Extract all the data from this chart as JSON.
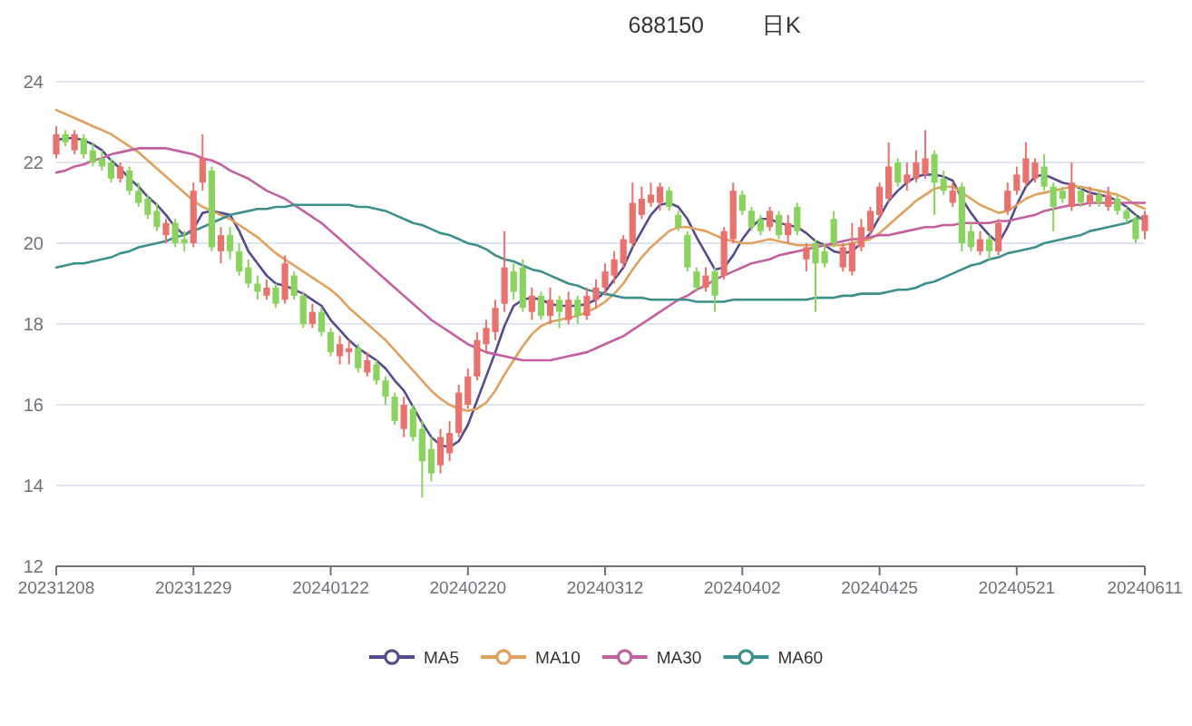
{
  "chart_data": {
    "type": "candlestick",
    "title": "688150",
    "subtitle": "日K",
    "categories": [
      "20231208",
      null,
      null,
      null,
      null,
      null,
      null,
      null,
      null,
      null,
      null,
      null,
      null,
      null,
      null,
      "20231229",
      null,
      null,
      null,
      null,
      null,
      null,
      null,
      null,
      null,
      null,
      null,
      null,
      null,
      null,
      "20240122",
      null,
      null,
      null,
      null,
      null,
      null,
      null,
      null,
      null,
      null,
      null,
      null,
      null,
      null,
      "20240220",
      null,
      null,
      null,
      null,
      null,
      null,
      null,
      null,
      null,
      null,
      null,
      null,
      null,
      null,
      "20240312",
      null,
      null,
      null,
      null,
      null,
      null,
      null,
      null,
      null,
      null,
      null,
      null,
      null,
      null,
      "20240402",
      null,
      null,
      null,
      null,
      null,
      null,
      null,
      null,
      null,
      null,
      null,
      null,
      null,
      null,
      "20240425",
      null,
      null,
      null,
      null,
      null,
      null,
      null,
      null,
      null,
      null,
      null,
      null,
      null,
      null,
      "20240521",
      null,
      null,
      null,
      null,
      null,
      null,
      null,
      null,
      null,
      null,
      null,
      null,
      null,
      "20240611"
    ],
    "ohlc": [
      [
        22.2,
        22.9,
        22.1,
        22.7
      ],
      [
        22.7,
        22.8,
        22.4,
        22.5
      ],
      [
        22.3,
        22.8,
        22.2,
        22.7
      ],
      [
        22.6,
        22.7,
        22.1,
        22.2
      ],
      [
        22.3,
        22.5,
        21.9,
        22.0
      ],
      [
        22.1,
        22.3,
        21.8,
        21.9
      ],
      [
        22.0,
        22.1,
        21.5,
        21.6
      ],
      [
        21.6,
        22.0,
        21.5,
        21.9
      ],
      [
        21.8,
        21.9,
        21.2,
        21.3
      ],
      [
        21.3,
        21.5,
        20.9,
        21.0
      ],
      [
        21.1,
        21.2,
        20.6,
        20.7
      ],
      [
        20.8,
        21.0,
        20.3,
        20.4
      ],
      [
        20.2,
        20.6,
        20.0,
        20.5
      ],
      [
        20.5,
        20.6,
        19.9,
        20.0
      ],
      [
        20.1,
        20.3,
        19.8,
        20.0
      ],
      [
        20.0,
        21.5,
        19.9,
        21.3
      ],
      [
        21.5,
        22.7,
        21.3,
        22.1
      ],
      [
        21.8,
        21.9,
        19.8,
        19.9
      ],
      [
        19.8,
        20.4,
        19.5,
        20.2
      ],
      [
        20.2,
        20.4,
        19.6,
        19.8
      ],
      [
        19.8,
        20.0,
        19.2,
        19.3
      ],
      [
        19.4,
        19.6,
        18.9,
        19.0
      ],
      [
        19.0,
        19.2,
        18.6,
        18.8
      ],
      [
        18.7,
        19.1,
        18.6,
        18.9
      ],
      [
        18.9,
        19.0,
        18.4,
        18.5
      ],
      [
        18.6,
        19.7,
        18.5,
        19.5
      ],
      [
        19.2,
        19.3,
        18.6,
        18.7
      ],
      [
        18.7,
        18.8,
        17.9,
        18.0
      ],
      [
        18.0,
        18.5,
        17.9,
        18.3
      ],
      [
        18.3,
        18.4,
        17.7,
        17.8
      ],
      [
        17.8,
        17.9,
        17.2,
        17.3
      ],
      [
        17.2,
        17.7,
        17.0,
        17.5
      ],
      [
        17.3,
        17.6,
        17.0,
        17.4
      ],
      [
        17.4,
        17.5,
        16.8,
        16.9
      ],
      [
        16.8,
        17.3,
        16.7,
        17.1
      ],
      [
        17.0,
        17.1,
        16.5,
        16.6
      ],
      [
        16.6,
        16.7,
        16.0,
        16.2
      ],
      [
        16.2,
        16.3,
        15.5,
        15.6
      ],
      [
        15.4,
        16.2,
        15.2,
        16.0
      ],
      [
        15.9,
        16.0,
        15.1,
        15.2
      ],
      [
        15.4,
        15.6,
        13.7,
        14.6
      ],
      [
        14.9,
        15.2,
        14.1,
        14.3
      ],
      [
        14.5,
        15.4,
        14.3,
        15.2
      ],
      [
        14.8,
        15.6,
        14.6,
        15.3
      ],
      [
        15.3,
        16.5,
        15.2,
        16.3
      ],
      [
        16.0,
        16.9,
        15.9,
        16.7
      ],
      [
        16.7,
        17.8,
        16.6,
        17.6
      ],
      [
        17.5,
        18.1,
        17.3,
        17.9
      ],
      [
        17.8,
        18.6,
        17.6,
        18.4
      ],
      [
        18.5,
        20.3,
        18.3,
        19.4
      ],
      [
        19.3,
        19.5,
        18.6,
        18.8
      ],
      [
        19.4,
        19.6,
        18.3,
        18.4
      ],
      [
        18.3,
        18.9,
        18.1,
        18.7
      ],
      [
        18.7,
        18.8,
        18.1,
        18.2
      ],
      [
        18.2,
        18.9,
        18.0,
        18.6
      ],
      [
        18.6,
        18.7,
        17.9,
        18.3
      ],
      [
        18.1,
        18.8,
        18.0,
        18.6
      ],
      [
        18.6,
        18.7,
        18.0,
        18.2
      ],
      [
        18.2,
        18.9,
        18.1,
        18.7
      ],
      [
        18.6,
        19.1,
        18.4,
        18.9
      ],
      [
        18.9,
        19.5,
        18.7,
        19.3
      ],
      [
        19.2,
        19.8,
        19.0,
        19.6
      ],
      [
        19.5,
        20.2,
        19.4,
        20.1
      ],
      [
        20.0,
        21.5,
        19.9,
        21.0
      ],
      [
        20.7,
        21.4,
        20.6,
        21.1
      ],
      [
        21.0,
        21.5,
        20.9,
        21.2
      ],
      [
        21.0,
        21.5,
        20.8,
        21.4
      ],
      [
        21.3,
        21.4,
        20.8,
        20.9
      ],
      [
        20.7,
        20.8,
        20.3,
        20.4
      ],
      [
        20.2,
        20.3,
        19.3,
        19.4
      ],
      [
        19.3,
        19.4,
        18.8,
        18.9
      ],
      [
        18.9,
        19.4,
        18.8,
        19.2
      ],
      [
        19.3,
        19.4,
        18.3,
        18.7
      ],
      [
        19.2,
        20.4,
        19.1,
        20.3
      ],
      [
        20.1,
        21.5,
        20.0,
        21.3
      ],
      [
        21.2,
        21.3,
        20.7,
        20.8
      ],
      [
        20.8,
        20.9,
        20.3,
        20.4
      ],
      [
        20.6,
        20.7,
        20.2,
        20.3
      ],
      [
        20.4,
        20.9,
        20.3,
        20.8
      ],
      [
        20.7,
        20.8,
        20.1,
        20.2
      ],
      [
        20.2,
        20.7,
        20.0,
        20.5
      ],
      [
        20.9,
        21.0,
        20.2,
        20.3
      ],
      [
        19.6,
        20.0,
        19.3,
        19.9
      ],
      [
        20.0,
        20.1,
        18.3,
        19.5
      ],
      [
        19.8,
        20.0,
        19.4,
        19.5
      ],
      [
        20.6,
        20.8,
        19.9,
        20.0
      ],
      [
        19.4,
        20.0,
        19.3,
        19.9
      ],
      [
        19.3,
        20.5,
        19.2,
        20.0
      ],
      [
        19.9,
        20.6,
        19.8,
        20.4
      ],
      [
        20.3,
        20.9,
        20.2,
        20.8
      ],
      [
        20.7,
        21.5,
        20.6,
        21.4
      ],
      [
        21.1,
        22.5,
        21.0,
        21.9
      ],
      [
        22.0,
        22.1,
        21.4,
        21.5
      ],
      [
        21.5,
        22.0,
        21.3,
        21.7
      ],
      [
        21.6,
        22.3,
        21.5,
        22.0
      ],
      [
        21.7,
        22.8,
        21.6,
        22.1
      ],
      [
        22.2,
        22.3,
        20.7,
        21.5
      ],
      [
        21.6,
        21.8,
        21.2,
        21.3
      ],
      [
        21.0,
        21.5,
        20.9,
        21.3
      ],
      [
        21.4,
        21.5,
        19.8,
        20.0
      ],
      [
        20.3,
        20.5,
        19.8,
        19.9
      ],
      [
        19.8,
        20.3,
        19.7,
        20.1
      ],
      [
        20.1,
        20.2,
        19.6,
        19.8
      ],
      [
        19.8,
        20.6,
        19.7,
        20.5
      ],
      [
        20.8,
        21.5,
        20.7,
        21.3
      ],
      [
        21.3,
        21.9,
        21.2,
        21.7
      ],
      [
        21.5,
        22.5,
        21.4,
        22.1
      ],
      [
        21.6,
        22.1,
        21.5,
        22.0
      ],
      [
        21.9,
        22.2,
        21.3,
        21.4
      ],
      [
        21.4,
        21.5,
        20.3,
        20.9
      ],
      [
        21.3,
        21.4,
        21.0,
        21.1
      ],
      [
        20.9,
        22.0,
        20.8,
        21.5
      ],
      [
        21.3,
        21.4,
        20.9,
        21.0
      ],
      [
        21.0,
        21.4,
        20.9,
        21.2
      ],
      [
        21.2,
        21.3,
        20.9,
        21.0
      ],
      [
        20.9,
        21.4,
        20.8,
        21.2
      ],
      [
        21.1,
        21.2,
        20.7,
        20.8
      ],
      [
        20.8,
        20.9,
        20.5,
        20.6
      ],
      [
        20.6,
        20.7,
        20.0,
        20.1
      ],
      [
        20.3,
        20.8,
        20.1,
        20.7
      ]
    ],
    "colors": [
      "#e9726e",
      "#8ad35f",
      "#e9726e",
      "#8ad35f",
      "#8ad35f",
      "#8ad35f",
      "#8ad35f",
      "#e9726e",
      "#8ad35f",
      "#8ad35f",
      "#8ad35f",
      "#8ad35f",
      "#e9726e",
      "#8ad35f",
      "#8ad35f",
      "#e9726e",
      "#e9726e",
      "#8ad35f",
      "#e9726e",
      "#8ad35f",
      "#8ad35f",
      "#8ad35f",
      "#8ad35f",
      "#e9726e",
      "#8ad35f",
      "#e9726e",
      "#8ad35f",
      "#8ad35f",
      "#e9726e",
      "#8ad35f",
      "#8ad35f",
      "#e9726e",
      "#e9726e",
      "#8ad35f",
      "#e9726e",
      "#8ad35f",
      "#8ad35f",
      "#8ad35f",
      "#e9726e",
      "#8ad35f",
      "#8ad35f",
      "#8ad35f",
      "#e9726e",
      "#e9726e",
      "#e9726e",
      "#e9726e",
      "#e9726e",
      "#e9726e",
      "#e9726e",
      "#e9726e",
      "#8ad35f",
      "#8ad35f",
      "#e9726e",
      "#8ad35f",
      "#e9726e",
      "#8ad35f",
      "#e9726e",
      "#8ad35f",
      "#e9726e",
      "#e9726e",
      "#e9726e",
      "#e9726e",
      "#e9726e",
      "#e9726e",
      "#e9726e",
      "#e9726e",
      "#e9726e",
      "#8ad35f",
      "#8ad35f",
      "#8ad35f",
      "#8ad35f",
      "#e9726e",
      "#8ad35f",
      "#e9726e",
      "#e9726e",
      "#8ad35f",
      "#8ad35f",
      "#8ad35f",
      "#e9726e",
      "#8ad35f",
      "#e9726e",
      "#8ad35f",
      "#e9726e",
      "#8ad35f",
      "#8ad35f",
      "#8ad35f",
      "#e9726e",
      "#e9726e",
      "#e9726e",
      "#e9726e",
      "#e9726e",
      "#e9726e",
      "#8ad35f",
      "#e9726e",
      "#e9726e",
      "#e9726e",
      "#8ad35f",
      "#8ad35f",
      "#e9726e",
      "#8ad35f",
      "#8ad35f",
      "#e9726e",
      "#8ad35f",
      "#e9726e",
      "#e9726e",
      "#e9726e",
      "#e9726e",
      "#e9726e",
      "#8ad35f",
      "#8ad35f",
      "#8ad35f",
      "#e9726e",
      "#8ad35f",
      "#e9726e",
      "#8ad35f",
      "#e9726e",
      "#8ad35f",
      "#8ad35f",
      "#8ad35f",
      "#e9726e"
    ],
    "series": [
      {
        "name": "MA5",
        "type": "line",
        "color": "#574b90",
        "values": [
          22.55,
          22.6,
          22.6,
          22.55,
          22.45,
          22.3,
          22.05,
          21.85,
          21.6,
          21.4,
          21.15,
          20.95,
          20.7,
          20.4,
          20.2,
          20.35,
          20.75,
          20.8,
          20.75,
          20.7,
          20.3,
          19.8,
          19.5,
          19.2,
          19.0,
          18.95,
          18.85,
          18.75,
          18.6,
          18.45,
          18.1,
          17.85,
          17.6,
          17.4,
          17.25,
          17.1,
          16.9,
          16.6,
          16.35,
          15.95,
          15.55,
          15.2,
          15.0,
          14.95,
          15.1,
          15.5,
          16.1,
          16.7,
          17.3,
          17.95,
          18.45,
          18.6,
          18.65,
          18.6,
          18.5,
          18.45,
          18.45,
          18.45,
          18.5,
          18.6,
          18.8,
          19.1,
          19.4,
          19.9,
          20.3,
          20.7,
          20.95,
          21.0,
          20.9,
          20.6,
          20.15,
          19.75,
          19.35,
          19.4,
          19.7,
          20.1,
          20.4,
          20.6,
          20.6,
          20.5,
          20.45,
          20.4,
          20.25,
          20.05,
          19.95,
          19.8,
          19.75,
          19.8,
          20.0,
          20.25,
          20.65,
          21.05,
          21.3,
          21.5,
          21.65,
          21.7,
          21.7,
          21.65,
          21.55,
          21.1,
          20.75,
          20.45,
          20.2,
          20.0,
          20.4,
          20.95,
          21.4,
          21.65,
          21.7,
          21.6,
          21.5,
          21.45,
          21.35,
          21.25,
          21.2,
          21.15,
          21.05,
          20.9,
          20.7,
          20.55
        ]
      },
      {
        "name": "MA10",
        "type": "line",
        "color": "#e0a15e",
        "values": [
          23.3,
          23.2,
          23.1,
          23.0,
          22.9,
          22.8,
          22.7,
          22.55,
          22.4,
          22.25,
          22.05,
          21.85,
          21.65,
          21.45,
          21.25,
          21.05,
          20.9,
          20.8,
          20.7,
          20.6,
          20.45,
          20.3,
          20.15,
          19.95,
          19.75,
          19.6,
          19.45,
          19.3,
          19.15,
          19.0,
          18.85,
          18.65,
          18.4,
          18.2,
          18.0,
          17.8,
          17.6,
          17.35,
          17.1,
          16.85,
          16.6,
          16.35,
          16.15,
          16.0,
          15.9,
          15.85,
          15.9,
          16.05,
          16.35,
          16.75,
          17.1,
          17.45,
          17.75,
          17.95,
          18.05,
          18.1,
          18.15,
          18.2,
          18.3,
          18.4,
          18.55,
          18.75,
          19.0,
          19.35,
          19.65,
          19.9,
          20.1,
          20.3,
          20.4,
          20.4,
          20.35,
          20.3,
          20.2,
          20.1,
          20.05,
          20.0,
          20.0,
          20.05,
          20.1,
          20.05,
          20.0,
          19.95,
          19.95,
          19.95,
          19.95,
          19.95,
          19.95,
          20.0,
          20.05,
          20.1,
          20.25,
          20.45,
          20.65,
          20.85,
          21.05,
          21.2,
          21.35,
          21.4,
          21.4,
          21.25,
          21.1,
          20.95,
          20.85,
          20.75,
          20.8,
          20.95,
          21.1,
          21.2,
          21.25,
          21.3,
          21.35,
          21.4,
          21.4,
          21.35,
          21.3,
          21.25,
          21.2,
          21.1,
          20.95,
          20.85
        ]
      },
      {
        "name": "MA30",
        "type": "line",
        "color": "#c4609f",
        "values": [
          21.75,
          21.8,
          21.9,
          21.95,
          22.05,
          22.1,
          22.2,
          22.25,
          22.3,
          22.35,
          22.35,
          22.35,
          22.35,
          22.3,
          22.25,
          22.2,
          22.1,
          22.05,
          21.95,
          21.8,
          21.7,
          21.6,
          21.45,
          21.3,
          21.2,
          21.1,
          20.95,
          20.8,
          20.65,
          20.5,
          20.3,
          20.1,
          19.9,
          19.7,
          19.5,
          19.3,
          19.1,
          18.9,
          18.7,
          18.5,
          18.3,
          18.1,
          17.95,
          17.8,
          17.65,
          17.5,
          17.4,
          17.3,
          17.25,
          17.2,
          17.15,
          17.1,
          17.1,
          17.1,
          17.1,
          17.15,
          17.2,
          17.25,
          17.3,
          17.4,
          17.5,
          17.6,
          17.7,
          17.85,
          18.0,
          18.15,
          18.3,
          18.45,
          18.6,
          18.7,
          18.85,
          18.95,
          19.1,
          19.2,
          19.3,
          19.4,
          19.5,
          19.55,
          19.6,
          19.7,
          19.75,
          19.8,
          19.85,
          19.9,
          19.95,
          20.0,
          20.05,
          20.1,
          20.1,
          20.15,
          20.2,
          20.2,
          20.25,
          20.3,
          20.35,
          20.4,
          20.4,
          20.45,
          20.45,
          20.5,
          20.5,
          20.5,
          20.5,
          20.55,
          20.55,
          20.6,
          20.65,
          20.7,
          20.8,
          20.85,
          20.9,
          20.95,
          20.95,
          21.0,
          21.0,
          21.0,
          21.0,
          21.0,
          21.0,
          21.0
        ]
      },
      {
        "name": "MA60",
        "type": "line",
        "color": "#3d8f8c",
        "values": [
          19.4,
          19.45,
          19.5,
          19.5,
          19.55,
          19.6,
          19.65,
          19.75,
          19.8,
          19.9,
          19.95,
          20.0,
          20.05,
          20.15,
          20.2,
          20.3,
          20.4,
          20.5,
          20.6,
          20.7,
          20.75,
          20.8,
          20.85,
          20.85,
          20.9,
          20.9,
          20.95,
          20.95,
          20.95,
          20.95,
          20.95,
          20.95,
          20.95,
          20.9,
          20.9,
          20.85,
          20.8,
          20.7,
          20.6,
          20.5,
          20.45,
          20.35,
          20.25,
          20.2,
          20.1,
          20.0,
          19.95,
          19.85,
          19.7,
          19.6,
          19.55,
          19.45,
          19.35,
          19.3,
          19.2,
          19.1,
          19.0,
          18.95,
          18.85,
          18.8,
          18.75,
          18.7,
          18.65,
          18.65,
          18.65,
          18.6,
          18.6,
          18.6,
          18.6,
          18.6,
          18.55,
          18.55,
          18.55,
          18.55,
          18.6,
          18.6,
          18.6,
          18.6,
          18.6,
          18.6,
          18.6,
          18.6,
          18.6,
          18.65,
          18.65,
          18.65,
          18.7,
          18.7,
          18.75,
          18.75,
          18.75,
          18.8,
          18.85,
          18.85,
          18.9,
          19.0,
          19.05,
          19.15,
          19.25,
          19.35,
          19.45,
          19.5,
          19.6,
          19.65,
          19.75,
          19.8,
          19.85,
          19.9,
          20.0,
          20.05,
          20.1,
          20.15,
          20.2,
          20.3,
          20.35,
          20.4,
          20.45,
          20.5,
          20.6,
          20.65
        ]
      }
    ],
    "ylim": [
      12,
      24
    ],
    "yticks": [
      12,
      14,
      16,
      18,
      20,
      22,
      24
    ],
    "grid": "y",
    "legend": "bottom"
  }
}
